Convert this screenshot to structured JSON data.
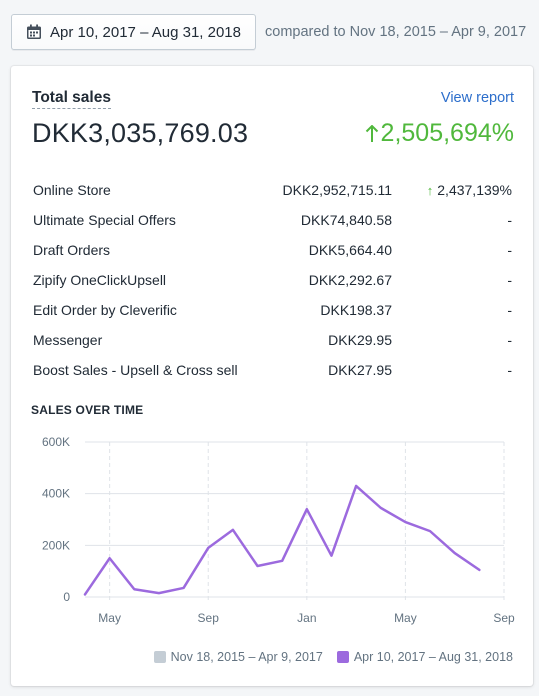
{
  "header": {
    "date_range": "Apr 10, 2017 – Aug 31, 2018",
    "compare_text": "compared to Nov 18, 2015 – Apr 9, 2017"
  },
  "card": {
    "title": "Total sales",
    "view_report": "View report",
    "total": "DKK3,035,769.03",
    "total_change": "2,505,694%",
    "rows": [
      {
        "name": "Online Store",
        "amount": "DKK2,952,715.11",
        "change": "2,437,139%"
      },
      {
        "name": "Ultimate Special Offers",
        "amount": "DKK74,840.58",
        "change": "-"
      },
      {
        "name": "Draft Orders",
        "amount": "DKK5,664.40",
        "change": "-"
      },
      {
        "name": "Zipify OneClickUpsell",
        "amount": "DKK2,292.67",
        "change": "-"
      },
      {
        "name": "Edit Order by Cleverific",
        "amount": "DKK198.37",
        "change": "-"
      },
      {
        "name": "Messenger",
        "amount": "DKK29.95",
        "change": "-"
      },
      {
        "name": "Boost Sales - Upsell & Cross sell",
        "amount": "DKK27.95",
        "change": "-"
      }
    ],
    "section_title": "SALES OVER TIME"
  },
  "colors": {
    "accent_green": "#50b83c",
    "link_blue": "#2c6ecb",
    "current_series": "#9c6ade",
    "previous_series": "#c4cdd5"
  },
  "chart_data": {
    "type": "line",
    "y_ticks": [
      "0",
      "200K",
      "400K",
      "600K"
    ],
    "ylim": [
      0,
      600000
    ],
    "x_tick_labels": [
      "May",
      "Sep",
      "Jan",
      "May",
      "Sep"
    ],
    "x_tick_positions": [
      1,
      5,
      9,
      13,
      17
    ],
    "xlim": [
      0,
      17
    ],
    "series": [
      {
        "name": "Nov 18, 2015 – Apr 9, 2017",
        "color": "#c4cdd5",
        "values": []
      },
      {
        "name": "Apr 10, 2017 – Aug 31, 2018",
        "color": "#9c6ade",
        "x": [
          0,
          1,
          2,
          3,
          4,
          5,
          6,
          7,
          8,
          9,
          10,
          11,
          12,
          13,
          14,
          15,
          16
        ],
        "values": [
          10000,
          150000,
          30000,
          15000,
          35000,
          190000,
          260000,
          120000,
          140000,
          340000,
          160000,
          430000,
          345000,
          290000,
          255000,
          170000,
          105000
        ]
      }
    ]
  }
}
